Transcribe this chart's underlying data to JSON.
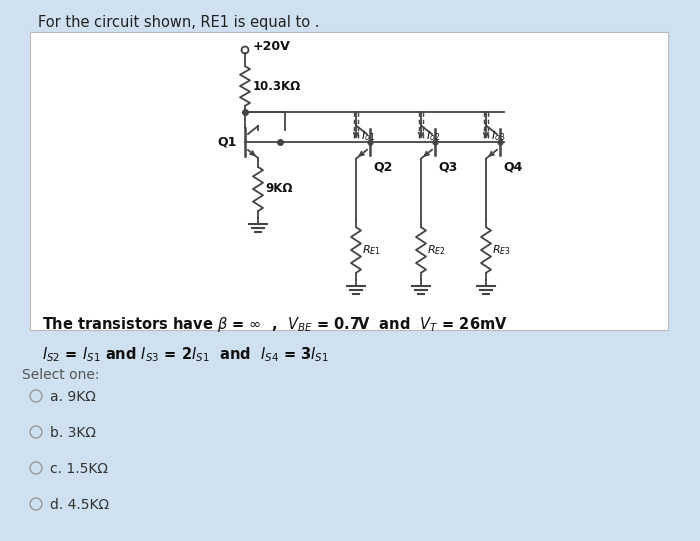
{
  "bg_color": "#cfe0f0",
  "card_color": "#ffffff",
  "title_text": "For the circuit shown, RE1 is equal to .",
  "title_fontsize": 10.5,
  "transistor_line1": "The transistors have β = ∞  ,  $V_{BE}$ = 0.7V  and  $V_T$ = 26mV",
  "transistor_line2": "$I_{S2}$ = $I_{S1}$ and $I_{S3}$ = 2$I_{S1}$  and  $I_{S4}$ = 3$I_{S1}$",
  "select_text": "Select one:",
  "options": [
    "a. 9KΩ",
    "b. 3KΩ",
    "c. 1.5KΩ",
    "d. 4.5KΩ"
  ],
  "line_color": "#444444",
  "lw": 1.3
}
